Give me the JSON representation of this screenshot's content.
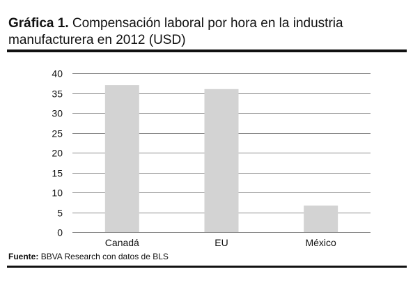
{
  "header": {
    "title_prefix": "Gráfica 1.",
    "title_text": "Compensación laboral por hora en la industria manufacturera en 2012 (USD)"
  },
  "footer": {
    "source_label": "Fuente:",
    "source_text": "BBVA Research con datos de BLS"
  },
  "colors": {
    "bar": "#d3d3d3",
    "grid": "#8c8c8c",
    "text": "#111111",
    "rule": "#111111"
  },
  "chart_data": {
    "type": "bar",
    "title": "Compensación laboral por hora en la industria manufacturera en 2012 (USD)",
    "xlabel": "",
    "ylabel": "",
    "categories": [
      "Canadá",
      "EU",
      "México"
    ],
    "values": [
      37,
      36,
      6.7
    ],
    "ylim": [
      0,
      40
    ],
    "yticks": [
      0,
      5,
      10,
      15,
      20,
      25,
      30,
      35,
      40
    ],
    "grid": true,
    "legend": "none"
  }
}
